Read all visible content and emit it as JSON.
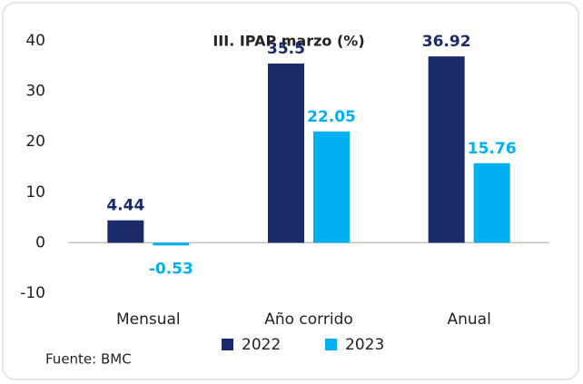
{
  "chart_data": {
    "type": "bar",
    "title": "III. IPAP marzo (%)",
    "categories": [
      "Mensual",
      "Año corrido",
      "Anual"
    ],
    "series": [
      {
        "name": "2022",
        "color": "#1b2a68",
        "values": [
          4.44,
          35.5,
          36.92
        ]
      },
      {
        "name": "2023",
        "color": "#00b0f0",
        "values": [
          -0.53,
          22.05,
          15.76
        ]
      }
    ],
    "ylim": [
      -10,
      40
    ],
    "yticks": [
      -10,
      0,
      10,
      20,
      30,
      40
    ],
    "grid": false,
    "legend": "bottom",
    "source": "Fuente: BMC"
  }
}
